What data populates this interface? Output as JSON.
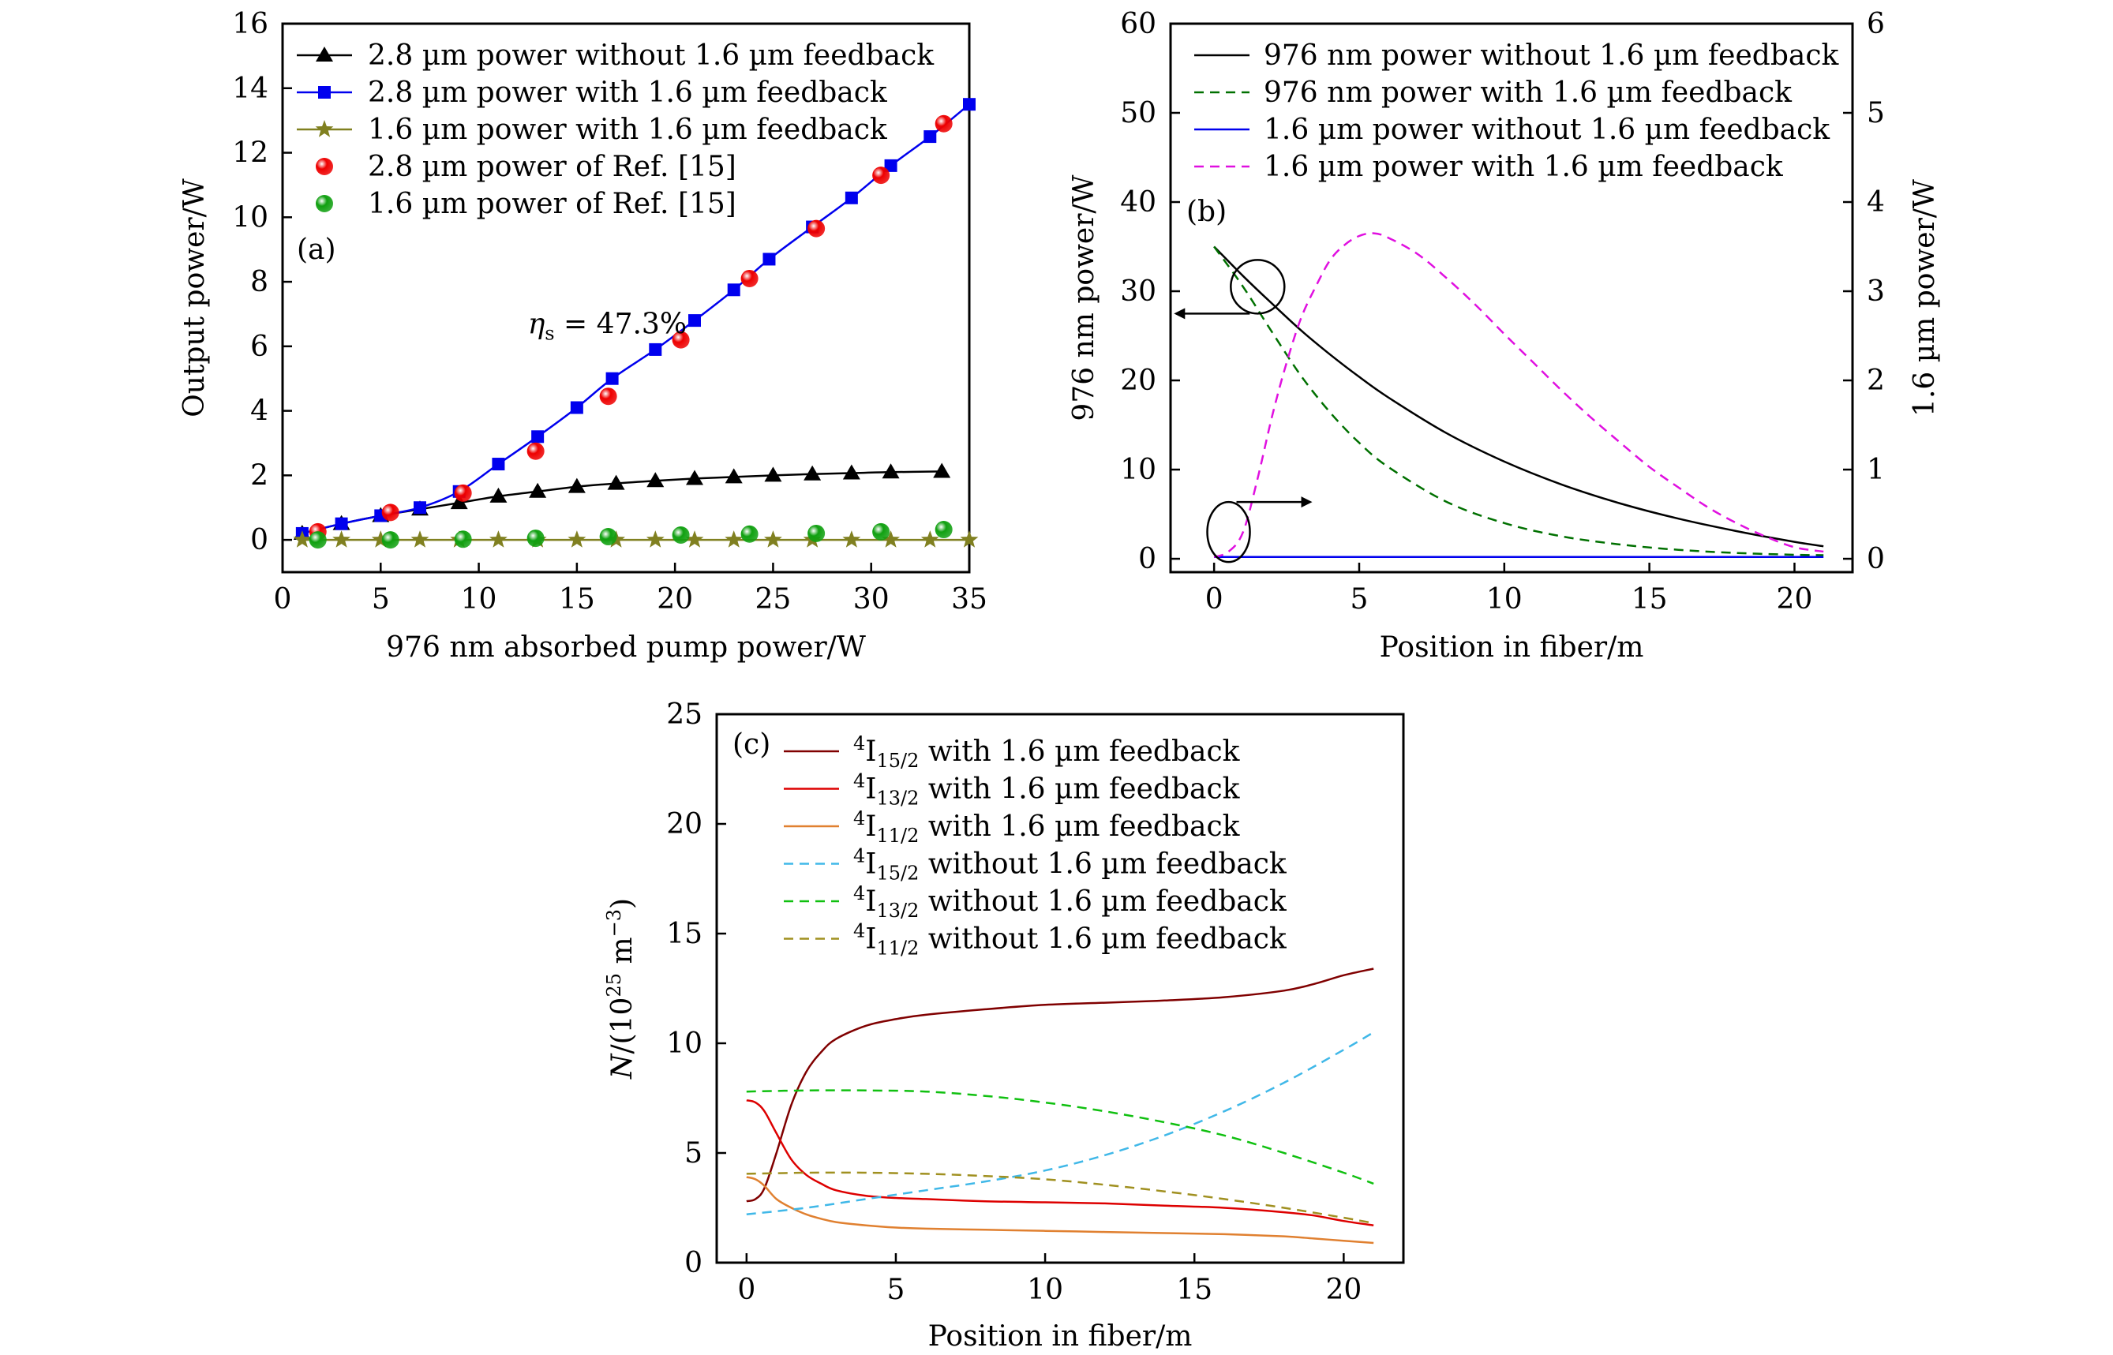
{
  "chart_data": [
    {
      "panel": "(a)",
      "type": "line",
      "xlabel": "976 nm absorbed pump power/W",
      "ylabel": "Output power/W",
      "xlim": [
        0,
        35
      ],
      "ylim": [
        -1,
        16
      ],
      "xticks": [
        0,
        5,
        10,
        15,
        20,
        25,
        30,
        35
      ],
      "yticks": [
        0,
        2,
        4,
        6,
        8,
        10,
        12,
        14,
        16
      ],
      "legend_position": "top-left",
      "annotation": {
        "symbol": "η",
        "subscript": "s",
        "text": " = 47.3%",
        "at": [
          12.5,
          6.4
        ]
      },
      "series": [
        {
          "name": "2.8 µm power without 1.6 µm feedback",
          "color": "#000000",
          "marker": "triangle",
          "x": [
            1,
            3,
            5,
            7,
            9,
            11,
            13,
            15,
            17,
            19,
            21,
            23,
            25,
            27,
            29,
            31,
            33.6
          ],
          "y": [
            0.2,
            0.5,
            0.75,
            0.95,
            1.15,
            1.35,
            1.5,
            1.65,
            1.75,
            1.83,
            1.9,
            1.95,
            2.0,
            2.04,
            2.07,
            2.1,
            2.12
          ]
        },
        {
          "name": "2.8 µm power with 1.6 µm feedback",
          "color": "#0000ee",
          "marker": "square",
          "x": [
            1,
            3,
            5,
            7,
            9,
            11,
            13,
            15,
            16.8,
            19,
            21,
            23,
            24.8,
            27,
            29,
            31,
            33,
            35
          ],
          "y": [
            0.2,
            0.5,
            0.75,
            1.0,
            1.5,
            2.35,
            3.2,
            4.1,
            5.0,
            5.9,
            6.8,
            7.75,
            8.7,
            9.7,
            10.6,
            11.6,
            12.5,
            13.5
          ]
        },
        {
          "name": "1.6 µm power with 1.6 µm feedback",
          "color": "#808020",
          "marker": "star",
          "x": [
            1,
            3,
            5,
            7,
            9,
            11,
            13,
            15,
            17,
            19,
            21,
            23,
            25,
            27,
            29,
            31,
            33,
            35
          ],
          "y": [
            0,
            0,
            0,
            0,
            0,
            0,
            0,
            0,
            0,
            0,
            0,
            0,
            0,
            0,
            0,
            0,
            0,
            0
          ]
        },
        {
          "name": "2.8 µm power of Ref. [15]",
          "color": "#ee0000",
          "marker": "ball",
          "line": false,
          "x": [
            1.8,
            5.5,
            9.2,
            12.9,
            16.6,
            20.3,
            23.8,
            27.2,
            30.5,
            33.7
          ],
          "y": [
            0.25,
            0.85,
            1.45,
            2.75,
            4.45,
            6.2,
            8.1,
            9.65,
            11.3,
            12.9
          ]
        },
        {
          "name": "1.6 µm power of Ref. [15]",
          "color": "#10a010",
          "marker": "ball",
          "line": false,
          "x": [
            1.8,
            5.5,
            9.2,
            12.9,
            16.6,
            20.3,
            23.8,
            27.2,
            30.5,
            33.7
          ],
          "y": [
            0.0,
            0.0,
            0.02,
            0.05,
            0.1,
            0.15,
            0.18,
            0.2,
            0.25,
            0.32
          ]
        }
      ]
    },
    {
      "panel": "(b)",
      "type": "line",
      "xlabel": "Position in fiber/m",
      "ylabel": "976 nm power/W",
      "ylabel_right": "1.6 µm power/W",
      "xlim": [
        -1.5,
        22
      ],
      "ylim": [
        -1.5,
        60
      ],
      "ylim_right": [
        -0.15,
        6
      ],
      "xticks": [
        0,
        5,
        10,
        15,
        20
      ],
      "yticks": [
        0,
        10,
        20,
        30,
        40,
        50,
        60
      ],
      "yticks_right": [
        0,
        1,
        2,
        3,
        4,
        5,
        6
      ],
      "legend_position": "top",
      "series": [
        {
          "name": "976 nm power without 1.6 µm feedback",
          "color": "#000000",
          "dash": false,
          "axis": "left",
          "x": [
            0,
            1,
            2,
            3,
            4,
            5,
            6,
            8,
            10,
            12,
            14,
            16,
            18,
            20,
            21
          ],
          "y": [
            35,
            31.7,
            28.6,
            25.6,
            22.9,
            20.4,
            18.1,
            14.1,
            10.9,
            8.3,
            6.2,
            4.5,
            3.1,
            1.9,
            1.4
          ]
        },
        {
          "name": "976 nm power with 1.6 µm feedback",
          "color": "#007000",
          "dash": true,
          "axis": "left",
          "x": [
            0,
            1,
            2,
            3,
            4,
            5,
            6,
            8,
            10,
            12,
            14,
            16,
            18,
            20,
            21
          ],
          "y": [
            35,
            30.5,
            25.4,
            20.5,
            16.4,
            13.0,
            10.3,
            6.4,
            4.0,
            2.5,
            1.6,
            1.0,
            0.65,
            0.45,
            0.4
          ]
        },
        {
          "name": "1.6 µm power without 1.6 µm feedback",
          "color": "#0000ee",
          "dash": false,
          "axis": "right",
          "x": [
            0,
            21
          ],
          "y": [
            0.02,
            0.02
          ]
        },
        {
          "name": "1.6 µm power with 1.6 µm feedback",
          "color": "#e010e0",
          "dash": true,
          "axis": "right",
          "x": [
            0,
            0.5,
            1,
            1.5,
            2,
            2.5,
            3,
            3.5,
            4,
            4.5,
            5,
            5.5,
            6,
            7,
            8,
            9,
            10,
            11,
            12,
            13,
            14,
            15,
            16,
            17,
            18,
            19,
            20,
            21
          ],
          "y": [
            0.02,
            0.08,
            0.3,
            0.9,
            1.6,
            2.2,
            2.7,
            3.05,
            3.35,
            3.52,
            3.62,
            3.65,
            3.6,
            3.42,
            3.15,
            2.85,
            2.52,
            2.2,
            1.88,
            1.58,
            1.3,
            1.03,
            0.8,
            0.58,
            0.4,
            0.25,
            0.13,
            0.08
          ]
        }
      ],
      "arrows": [
        {
          "direction": "left",
          "target_axis": "left",
          "circle_at": [
            1.5,
            30.5
          ]
        },
        {
          "direction": "right",
          "target_axis": "right",
          "circle_at": [
            0.5,
            2.8
          ]
        }
      ]
    },
    {
      "panel": "(c)",
      "type": "line",
      "xlabel": "Position in fiber/m",
      "ylabel": {
        "italic": "N",
        "text": "/(10",
        "sup": "25",
        "text2": " m",
        "sup2": "−3",
        "text3": ")"
      },
      "xlim": [
        -1,
        22
      ],
      "ylim": [
        0,
        25
      ],
      "xticks": [
        0,
        5,
        10,
        15,
        20
      ],
      "yticks": [
        0,
        5,
        10,
        15,
        20,
        25
      ],
      "legend_position": "top-left",
      "series": [
        {
          "name": {
            "sup": "4",
            "base": "I",
            "sub": "15/2",
            "rest": " with 1.6 µm feedback"
          },
          "color": "#800000",
          "dash": false,
          "x": [
            0,
            0.3,
            0.6,
            1,
            1.5,
            2,
            2.5,
            3,
            4,
            5,
            6,
            8,
            10,
            12,
            14,
            16,
            18,
            19,
            20,
            21
          ],
          "y": [
            2.8,
            2.9,
            3.4,
            5.0,
            7.2,
            8.7,
            9.6,
            10.2,
            10.8,
            11.1,
            11.3,
            11.55,
            11.75,
            11.85,
            11.95,
            12.1,
            12.4,
            12.7,
            13.1,
            13.4
          ]
        },
        {
          "name": {
            "sup": "4",
            "base": "I",
            "sub": "13/2",
            "rest": " with 1.6 µm feedback"
          },
          "color": "#dd0000",
          "dash": false,
          "x": [
            0,
            0.3,
            0.6,
            1,
            1.5,
            2,
            2.5,
            3,
            4,
            5,
            6,
            8,
            10,
            12,
            14,
            16,
            18,
            19,
            20,
            21
          ],
          "y": [
            7.4,
            7.3,
            6.9,
            5.9,
            4.7,
            4.0,
            3.6,
            3.3,
            3.05,
            2.95,
            2.9,
            2.8,
            2.75,
            2.7,
            2.6,
            2.5,
            2.3,
            2.15,
            1.9,
            1.7
          ]
        },
        {
          "name": {
            "sup": "4",
            "base": "I",
            "sub": "11/2",
            "rest": " with 1.6 µm feedback"
          },
          "color": "#e08030",
          "dash": false,
          "x": [
            0,
            0.3,
            0.6,
            1,
            1.5,
            2,
            2.5,
            3,
            4,
            5,
            6,
            8,
            10,
            12,
            14,
            16,
            18,
            19,
            20,
            21
          ],
          "y": [
            3.9,
            3.8,
            3.5,
            2.9,
            2.5,
            2.2,
            2.0,
            1.85,
            1.7,
            1.6,
            1.55,
            1.5,
            1.45,
            1.4,
            1.35,
            1.3,
            1.2,
            1.1,
            1.0,
            0.9
          ]
        },
        {
          "name": {
            "sup": "4",
            "base": "I",
            "sub": "15/2",
            "rest": " without 1.6 µm feedback"
          },
          "color": "#40b8e8",
          "dash": true,
          "x": [
            0,
            2,
            4,
            6,
            8,
            10,
            12,
            14,
            16,
            18,
            20,
            21
          ],
          "y": [
            2.2,
            2.5,
            2.9,
            3.3,
            3.7,
            4.2,
            4.9,
            5.8,
            6.9,
            8.2,
            9.7,
            10.5
          ]
        },
        {
          "name": {
            "sup": "4",
            "base": "I",
            "sub": "13/2",
            "rest": " without 1.6 µm feedback"
          },
          "color": "#10c010",
          "dash": true,
          "x": [
            0,
            2,
            4,
            6,
            8,
            10,
            12,
            14,
            16,
            18,
            20,
            21
          ],
          "y": [
            7.8,
            7.85,
            7.85,
            7.8,
            7.6,
            7.3,
            6.9,
            6.4,
            5.8,
            5.0,
            4.1,
            3.6
          ]
        },
        {
          "name": {
            "sup": "4",
            "base": "I",
            "sub": "11/2",
            "rest": " without 1.6 µm feedback"
          },
          "color": "#a09020",
          "dash": true,
          "x": [
            0,
            2,
            4,
            6,
            8,
            10,
            12,
            14,
            16,
            18,
            20,
            21
          ],
          "y": [
            4.05,
            4.1,
            4.1,
            4.05,
            3.95,
            3.8,
            3.55,
            3.25,
            2.9,
            2.5,
            2.05,
            1.8
          ]
        }
      ]
    }
  ]
}
